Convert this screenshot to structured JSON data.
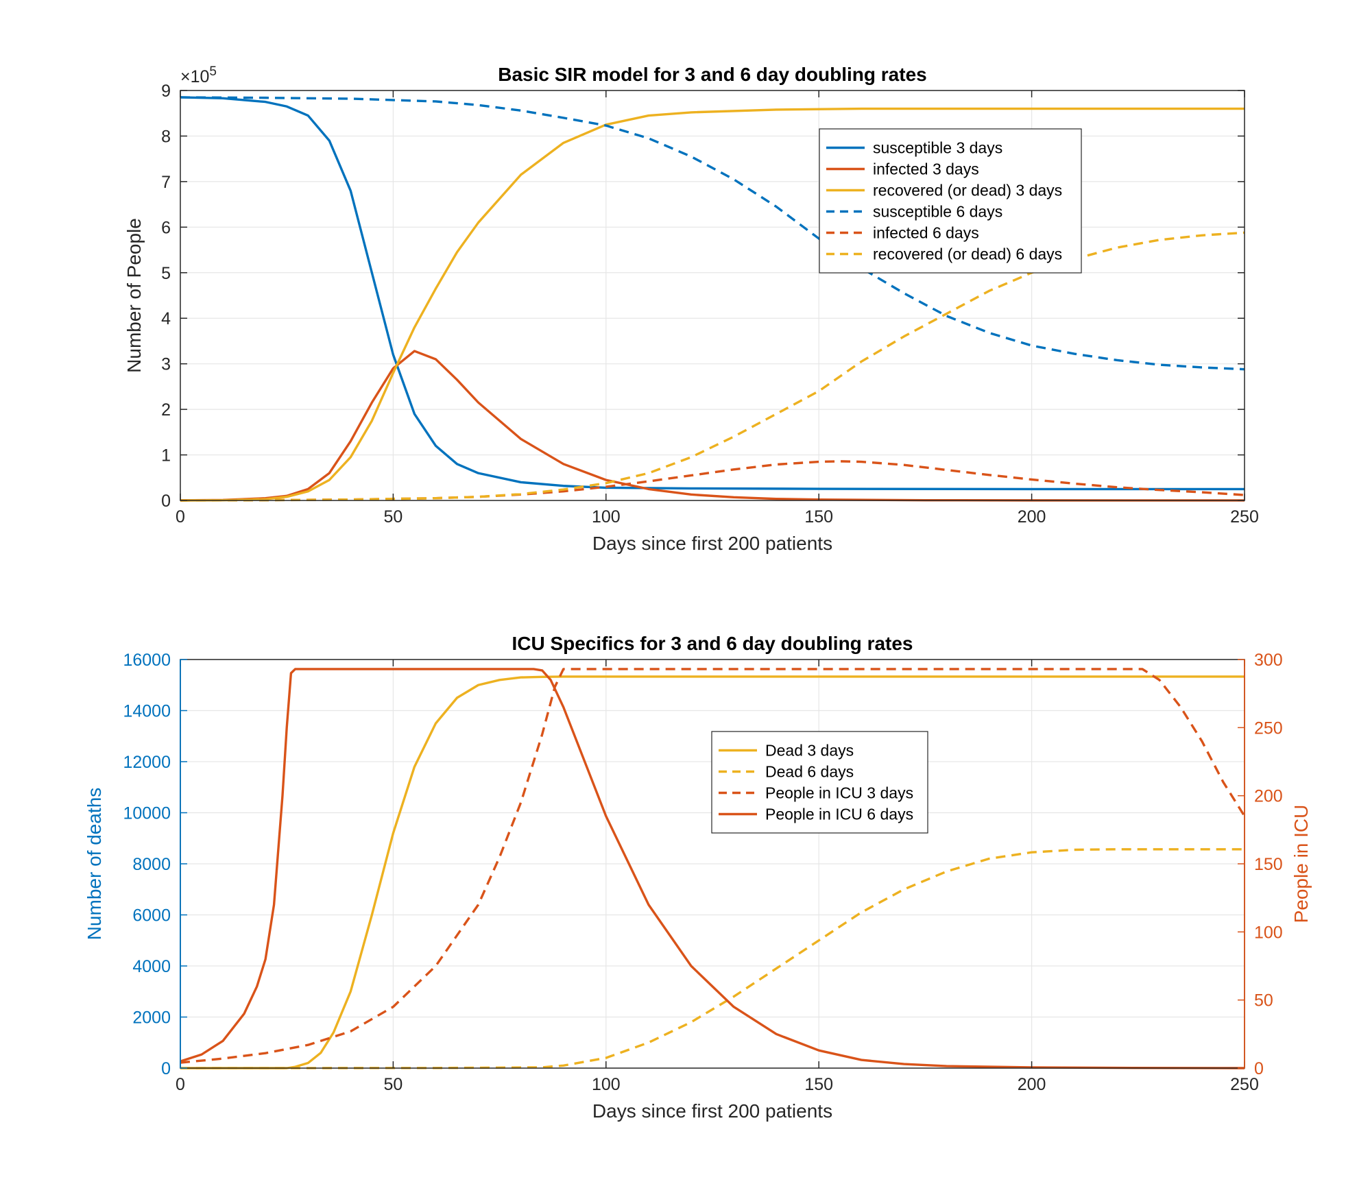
{
  "colors": {
    "blue": "#0072bd",
    "red": "#d95319",
    "yellow": "#edb120",
    "axis": "#262626",
    "grid": "#e6e6e6"
  },
  "chart_data": [
    {
      "type": "line",
      "title": "Basic SIR model for 3 and 6 day doubling rates",
      "xlabel": "Days since first 200 patients",
      "ylabel": "Number of People",
      "y_exponent_label": "×10",
      "y_exponent_power": "5",
      "xlim": [
        0,
        250
      ],
      "ylim": [
        0,
        900000
      ],
      "grid": true,
      "legend_position": "top-right",
      "x_ticks": [
        "0",
        "50",
        "100",
        "150",
        "200",
        "250"
      ],
      "y_ticks": [
        "0",
        "1",
        "2",
        "3",
        "4",
        "5",
        "6",
        "7",
        "8",
        "9"
      ],
      "series": [
        {
          "name": "susceptible 3 days",
          "color": "blue",
          "style": "solid",
          "x": [
            0,
            10,
            20,
            25,
            30,
            35,
            40,
            45,
            50,
            55,
            60,
            65,
            70,
            80,
            90,
            100,
            120,
            150,
            200,
            250
          ],
          "y": [
            885000,
            883000,
            875000,
            865000,
            845000,
            790000,
            680000,
            500000,
            320000,
            190000,
            120000,
            80000,
            60000,
            40000,
            32000,
            28000,
            26500,
            25500,
            25000,
            25000
          ]
        },
        {
          "name": "infected 3 days",
          "color": "red",
          "style": "solid",
          "x": [
            0,
            10,
            20,
            25,
            30,
            35,
            40,
            45,
            50,
            55,
            60,
            65,
            70,
            80,
            90,
            100,
            110,
            120,
            130,
            140,
            150,
            175,
            200,
            250
          ],
          "y": [
            200,
            1000,
            5000,
            10000,
            25000,
            60000,
            130000,
            215000,
            290000,
            328000,
            310000,
            265000,
            215000,
            135000,
            80000,
            45000,
            25000,
            13000,
            7000,
            3500,
            2000,
            500,
            200,
            50
          ]
        },
        {
          "name": "recovered (or dead) 3 days",
          "color": "yellow",
          "style": "solid",
          "x": [
            0,
            10,
            20,
            25,
            30,
            35,
            40,
            45,
            50,
            55,
            60,
            65,
            70,
            80,
            90,
            100,
            110,
            120,
            140,
            160,
            200,
            250
          ],
          "y": [
            0,
            500,
            3000,
            8000,
            20000,
            45000,
            95000,
            175000,
            280000,
            380000,
            465000,
            545000,
            610000,
            715000,
            785000,
            825000,
            845000,
            852000,
            858000,
            860000,
            860000,
            860000
          ]
        },
        {
          "name": "susceptible 6 days",
          "color": "blue",
          "style": "dashed",
          "x": [
            0,
            20,
            40,
            60,
            70,
            80,
            90,
            100,
            110,
            120,
            130,
            140,
            150,
            160,
            170,
            180,
            190,
            200,
            210,
            220,
            230,
            240,
            250
          ],
          "y": [
            885000,
            884000,
            882000,
            876000,
            868000,
            856000,
            840000,
            823000,
            795000,
            755000,
            705000,
            645000,
            575000,
            510000,
            455000,
            405000,
            368000,
            340000,
            322000,
            308000,
            298000,
            292000,
            288000
          ]
        },
        {
          "name": "infected 6 days",
          "color": "red",
          "style": "dashed",
          "x": [
            0,
            20,
            40,
            60,
            70,
            80,
            90,
            100,
            110,
            120,
            130,
            140,
            150,
            155,
            160,
            170,
            180,
            190,
            200,
            210,
            220,
            230,
            240,
            250
          ],
          "y": [
            200,
            800,
            2000,
            5000,
            8000,
            13000,
            20000,
            30000,
            42000,
            55000,
            68000,
            79000,
            85000,
            86000,
            85000,
            78000,
            67000,
            56000,
            46000,
            37000,
            29000,
            23000,
            18000,
            12000
          ]
        },
        {
          "name": "recovered (or dead) 6 days",
          "color": "yellow",
          "style": "dashed",
          "x": [
            0,
            20,
            40,
            60,
            70,
            80,
            90,
            100,
            110,
            120,
            130,
            140,
            150,
            160,
            170,
            180,
            190,
            200,
            210,
            220,
            230,
            240,
            250
          ],
          "y": [
            0,
            500,
            2000,
            5000,
            8000,
            14000,
            24000,
            38000,
            60000,
            95000,
            140000,
            190000,
            240000,
            305000,
            360000,
            410000,
            460000,
            500000,
            530000,
            555000,
            572000,
            582000,
            588000
          ]
        }
      ]
    },
    {
      "type": "line",
      "title": "ICU Specifics for 3 and 6 day doubling rates",
      "xlabel": "Days since first 200 patients",
      "ylabel": "Number of deaths",
      "ylabel_right": "People in ICU",
      "xlim": [
        0,
        250
      ],
      "ylim": [
        0,
        16000
      ],
      "ylim_right": [
        0,
        300
      ],
      "grid": true,
      "legend_position": "top-center",
      "x_ticks": [
        "0",
        "50",
        "100",
        "150",
        "200",
        "250"
      ],
      "y_ticks": [
        "0",
        "2000",
        "4000",
        "6000",
        "8000",
        "10000",
        "12000",
        "14000",
        "16000"
      ],
      "y_ticks_right": [
        "0",
        "50",
        "100",
        "150",
        "200",
        "250",
        "300"
      ],
      "series": [
        {
          "name": "Dead 3 days",
          "color": "yellow",
          "style": "solid",
          "axis": "left",
          "x": [
            0,
            25,
            27,
            30,
            33,
            36,
            40,
            45,
            50,
            55,
            60,
            65,
            70,
            75,
            80,
            85,
            90,
            100,
            150,
            200,
            250
          ],
          "y": [
            0,
            0,
            50,
            200,
            600,
            1400,
            3000,
            6000,
            9200,
            11800,
            13500,
            14500,
            15000,
            15200,
            15300,
            15320,
            15330,
            15330,
            15330,
            15330,
            15330
          ]
        },
        {
          "name": "Dead 6 days",
          "color": "yellow",
          "style": "dashed",
          "axis": "left",
          "x": [
            0,
            60,
            85,
            90,
            100,
            110,
            120,
            130,
            140,
            150,
            160,
            170,
            180,
            190,
            200,
            210,
            220,
            230,
            240,
            250
          ],
          "y": [
            0,
            5,
            30,
            100,
            400,
            1000,
            1800,
            2800,
            3900,
            5000,
            6100,
            7000,
            7700,
            8200,
            8450,
            8550,
            8570,
            8570,
            8570,
            8570
          ]
        },
        {
          "name": "People in ICU 3 days",
          "color": "red",
          "style": "dashed",
          "axis": "right",
          "x": [
            0,
            10,
            20,
            30,
            40,
            50,
            60,
            70,
            75,
            80,
            85,
            88,
            90,
            100,
            150,
            200,
            226,
            230,
            235,
            240,
            245,
            250
          ],
          "y": [
            4,
            7,
            11,
            17,
            27,
            45,
            75,
            120,
            155,
            195,
            245,
            280,
            293,
            293,
            293,
            293,
            293,
            285,
            265,
            240,
            210,
            185
          ]
        },
        {
          "name": "People in ICU 6 days",
          "color": "red",
          "style": "solid",
          "axis": "right",
          "x": [
            0,
            5,
            10,
            15,
            18,
            20,
            22,
            24,
            25,
            26,
            27,
            30,
            50,
            83,
            85,
            87,
            90,
            95,
            100,
            110,
            120,
            130,
            140,
            150,
            160,
            170,
            180,
            200,
            220,
            250
          ],
          "y": [
            5,
            10,
            20,
            40,
            60,
            80,
            120,
            200,
            250,
            290,
            293,
            293,
            293,
            293,
            292,
            285,
            265,
            225,
            185,
            120,
            75,
            45,
            25,
            13,
            6,
            3,
            1.5,
            0.5,
            0.2,
            0
          ]
        }
      ]
    }
  ]
}
